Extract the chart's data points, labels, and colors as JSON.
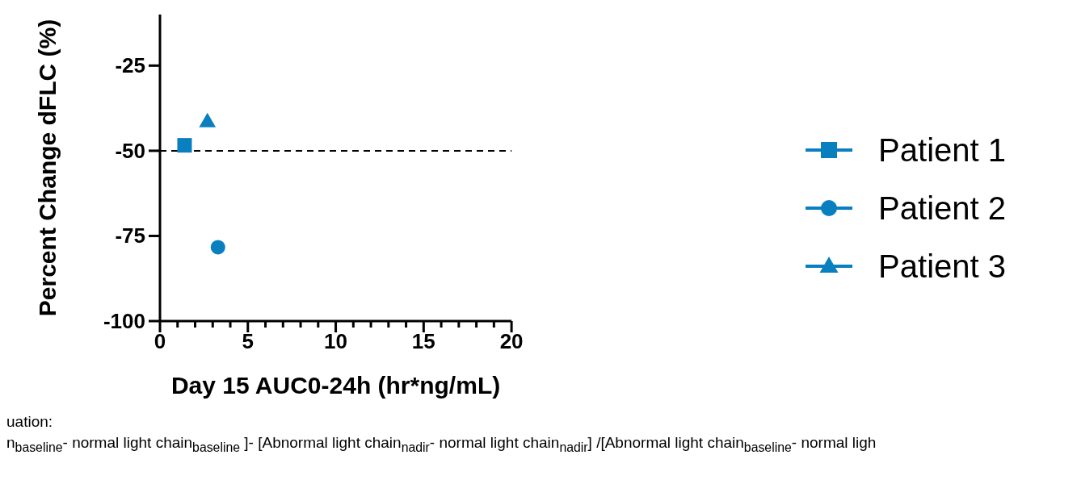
{
  "chart_data": {
    "type": "scatter",
    "xlabel": "Day 15 AUC0-24h (hr*ng/mL)",
    "ylabel": "Percent Change dFLC (%)",
    "xlim": [
      0,
      20
    ],
    "xticks": [
      0,
      {
        "value": 1,
        "label": null
      },
      {
        "value": 2,
        "label": null
      },
      {
        "value": 3,
        "label": null
      },
      {
        "value": 4,
        "label": null
      },
      5,
      {
        "value": 6,
        "label": null
      },
      {
        "value": 7,
        "label": null
      },
      {
        "value": 8,
        "label": null
      },
      {
        "value": 9,
        "label": null
      },
      10,
      {
        "value": 11,
        "label": null
      },
      {
        "value": 12,
        "label": null
      },
      {
        "value": 13,
        "label": null
      },
      {
        "value": 14,
        "label": null
      },
      15,
      {
        "value": 16,
        "label": null
      },
      {
        "value": 17,
        "label": null
      },
      {
        "value": 18,
        "label": null
      },
      {
        "value": 19,
        "label": null
      },
      20
    ],
    "ylim": [
      -100,
      -10
    ],
    "yticks": [
      -100,
      -75,
      -50,
      -25
    ],
    "series": [
      {
        "name": "Patient 1",
        "color": "#0a7fc0",
        "marker": "square",
        "x": [
          1.4
        ],
        "values": [
          -48.4
        ]
      },
      {
        "name": "Patient 2",
        "color": "#0a7fc0",
        "marker": "circle",
        "x": [
          3.3
        ],
        "values": [
          -78.3
        ]
      },
      {
        "name": "Patient 3",
        "color": "#0a7fc0",
        "marker": "triangle",
        "x": [
          2.7
        ],
        "values": [
          -41.4
        ]
      }
    ],
    "ref_lines": [
      {
        "axis": "y",
        "value": -50,
        "color": "#000000",
        "line_style": "dashed"
      }
    ],
    "grid": false,
    "legend": "right",
    "annotations": [
      "uation:",
      "n$_{baseline}$- normal light chain$_{baseline}$ ]- [Abnormal light chain$_{nadir}$- normal light chain$_{nadir}$] /[Abnormal light chain$_{baseline}$- normal ligh"
    ]
  }
}
